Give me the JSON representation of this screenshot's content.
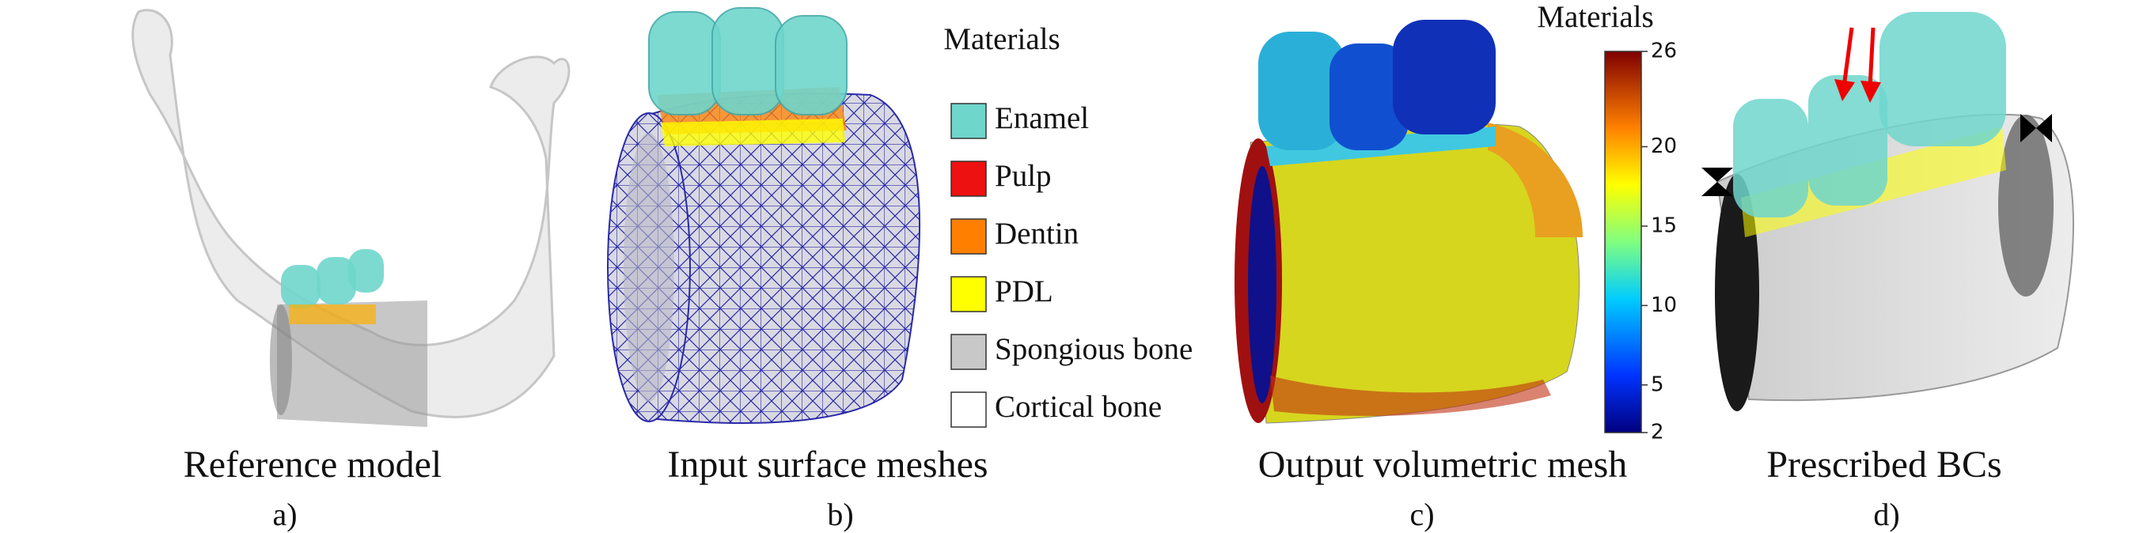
{
  "panels": [
    {
      "caption": "Reference model",
      "label": "a)"
    },
    {
      "caption": "Input surface meshes",
      "label": "b)"
    },
    {
      "caption": "Output volumetric mesh",
      "label": "c)"
    },
    {
      "caption": "Prescribed BCs",
      "label": "d)"
    }
  ],
  "legend": {
    "title": "Materials",
    "items": [
      {
        "name": "Enamel",
        "color": "#6fd6cc"
      },
      {
        "name": "Pulp",
        "color": "#ee1111"
      },
      {
        "name": "Dentin",
        "color": "#ff8000"
      },
      {
        "name": "PDL",
        "color": "#ffff00"
      },
      {
        "name": "Spongious bone",
        "color": "#c8c8c8"
      },
      {
        "name": "Cortical bone",
        "color": "#ffffff"
      }
    ]
  },
  "colorbar": {
    "title": "Materials",
    "range": [
      2,
      26
    ],
    "ticks": [
      2,
      5,
      10,
      15,
      20,
      26
    ]
  }
}
